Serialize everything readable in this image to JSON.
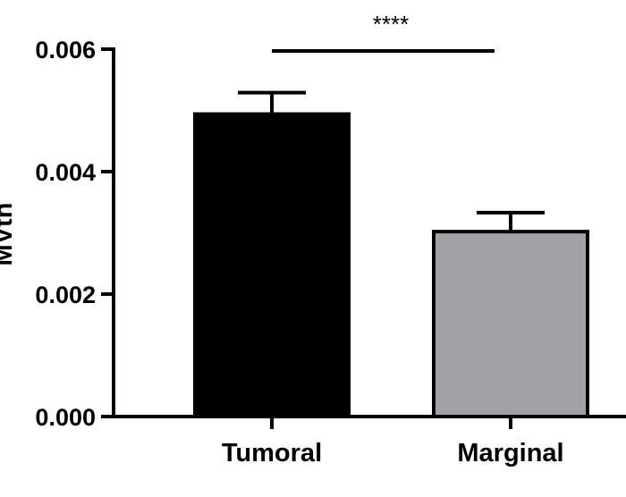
{
  "chart_data": {
    "type": "bar",
    "categories": [
      "Tumoral",
      "Marginal"
    ],
    "values": [
      0.00494,
      0.00302
    ],
    "error_upper": [
      0.00529,
      0.00333
    ],
    "bar_colors": [
      "#000000",
      "#a2a1a6"
    ],
    "ylabel": "MVth",
    "ylim": [
      0,
      0.006
    ],
    "yticks": [
      "0.000",
      "0.002",
      "0.004",
      "0.006"
    ],
    "ytick_values": [
      0,
      0.002,
      0.004,
      0.006
    ],
    "grid": false,
    "significance": {
      "label": "****",
      "between": [
        "Tumoral",
        "Marginal"
      ]
    }
  }
}
